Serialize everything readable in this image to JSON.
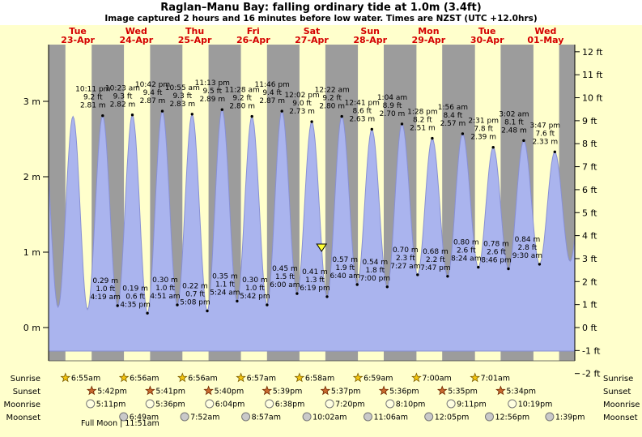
{
  "colors": {
    "page_bg": "#ffffcc",
    "header_bg": "#ffffff",
    "night_band": "#9c9c9c",
    "day_band": "#ffffcc",
    "water": "#aab4ee",
    "water_edge": "#8890d4",
    "day_label": "#d40000",
    "marker": "#ffff33",
    "sunrise_star": "#f2c40f",
    "sunset_star": "#c96a2f",
    "moonrise_fill": "#ffffe0",
    "moonset_fill": "#c9c9c9"
  },
  "chart_data": {
    "type": "area",
    "title": "Raglan–Manu Bay: falling  ordinary tide at 1.0m (3.4ft)",
    "subtitle": "Image captured 2 hours and 16 minutes before low water. Times are NZST (UTC +12.0hrs)",
    "x_axis_days": [
      {
        "weekday": "Tue",
        "date": "23-Apr"
      },
      {
        "weekday": "Wed",
        "date": "24-Apr"
      },
      {
        "weekday": "Thu",
        "date": "25-Apr"
      },
      {
        "weekday": "Fri",
        "date": "26-Apr"
      },
      {
        "weekday": "Sat",
        "date": "27-Apr"
      },
      {
        "weekday": "Sun",
        "date": "28-Apr"
      },
      {
        "weekday": "Mon",
        "date": "29-Apr"
      },
      {
        "weekday": "Tue",
        "date": "30-Apr"
      },
      {
        "weekday": "Wed",
        "date": "01-May"
      }
    ],
    "y_axis": {
      "left_unit": "m",
      "right_unit": "ft",
      "left_ticks": [
        "3 m",
        "2 m",
        "1 m",
        "0 m"
      ],
      "right_ticks": [
        "12 ft",
        "11 ft",
        "10 ft",
        "9 ft",
        "8 ft",
        "7 ft",
        "6 ft",
        "5 ft",
        "4 ft",
        "3 ft",
        "2 ft",
        "1 ft",
        "0 ft",
        "-1 ft",
        "-2 ft"
      ],
      "y_range_m": [
        -0.35,
        3.75
      ]
    },
    "tide_events": [
      {
        "type": "high",
        "time": "10:11 pm",
        "height_ft": "9.2 ft",
        "height_m": "2.81 m",
        "t": 22.183
      },
      {
        "type": "low",
        "time": "4:19 am",
        "height_ft": "1.0 ft",
        "height_m": "0.29 m",
        "t": 28.317
      },
      {
        "type": "high",
        "time": "10:23 am",
        "height_ft": "9.3 ft",
        "height_m": "2.82 m",
        "t": 34.383
      },
      {
        "type": "low",
        "time": "4:35 pm",
        "height_ft": "0.6 ft",
        "height_m": "0.19 m",
        "t": 40.583
      },
      {
        "type": "high",
        "time": "10:42 pm",
        "height_ft": "9.4 ft",
        "height_m": "2.87 m",
        "t": 46.7
      },
      {
        "type": "low",
        "time": "4:51 am",
        "height_ft": "1.0 ft",
        "height_m": "0.30 m",
        "t": 52.85
      },
      {
        "type": "high",
        "time": "10:55 am",
        "height_ft": "9.3 ft",
        "height_m": "2.83 m",
        "t": 58.917
      },
      {
        "type": "low",
        "time": "5:08 pm",
        "height_ft": "0.7 ft",
        "height_m": "0.22 m",
        "t": 65.133
      },
      {
        "type": "high",
        "time": "11:13 pm",
        "height_ft": "9.5 ft",
        "height_m": "2.89 m",
        "t": 71.217
      },
      {
        "type": "low",
        "time": "5:24 am",
        "height_ft": "1.1 ft",
        "height_m": "0.35 m",
        "t": 77.4
      },
      {
        "type": "high",
        "time": "11:28 am",
        "height_ft": "9.2 ft",
        "height_m": "2.80 m",
        "t": 83.467
      },
      {
        "type": "low",
        "time": "5:42 pm",
        "height_ft": "1.0 ft",
        "height_m": "0.30 m",
        "t": 89.7
      },
      {
        "type": "high",
        "time": "11:46 pm",
        "height_ft": "9.4 ft",
        "height_m": "2.87 m",
        "t": 95.767
      },
      {
        "type": "low",
        "time": "6:00 am",
        "height_ft": "1.5 ft",
        "height_m": "0.45 m",
        "t": 102.0
      },
      {
        "type": "high",
        "time": "12:02 pm",
        "height_ft": "9.0 ft",
        "height_m": "2.73 m",
        "t": 108.033
      },
      {
        "type": "low",
        "time": "6:19 pm",
        "height_ft": "1.3 ft",
        "height_m": "0.41 m",
        "t": 114.317
      },
      {
        "type": "high",
        "time": "12:22 am",
        "height_ft": "9.2 ft",
        "height_m": "2.80 m",
        "t": 120.367
      },
      {
        "type": "low",
        "time": "6:40 am",
        "height_ft": "1.9 ft",
        "height_m": "0.57 m",
        "t": 126.667
      },
      {
        "type": "high",
        "time": "12:41 pm",
        "height_ft": "8.6 ft",
        "height_m": "2.63 m",
        "t": 132.683
      },
      {
        "type": "low",
        "time": "7:00 pm",
        "height_ft": "1.8 ft",
        "height_m": "0.54 m",
        "t": 139.0
      },
      {
        "type": "high",
        "time": "1:04 am",
        "height_ft": "8.9 ft",
        "height_m": "2.70 m",
        "t": 145.067
      },
      {
        "type": "low",
        "time": "7:27 am",
        "height_ft": "2.3 ft",
        "height_m": "0.70 m",
        "t": 151.45
      },
      {
        "type": "high",
        "time": "1:28 pm",
        "height_ft": "8.2 ft",
        "height_m": "2.51 m",
        "t": 157.467
      },
      {
        "type": "low",
        "time": "7:47 pm",
        "height_ft": "2.2 ft",
        "height_m": "0.68 m",
        "t": 163.783
      },
      {
        "type": "high",
        "time": "1:56 am",
        "height_ft": "8.4 ft",
        "height_m": "2.57 m",
        "t": 169.933
      },
      {
        "type": "low",
        "time": "8:24 am",
        "height_ft": "2.6 ft",
        "height_m": "0.80 m",
        "t": 176.4
      },
      {
        "type": "high",
        "time": "2:31 pm",
        "height_ft": "7.8 ft",
        "height_m": "2.39 m",
        "t": 182.517
      },
      {
        "type": "low",
        "time": "8:46 pm",
        "height_ft": "2.6 ft",
        "height_m": "0.78 m",
        "t": 188.767
      },
      {
        "type": "high",
        "time": "3:02 am",
        "height_ft": "8.1 ft",
        "height_m": "2.48 m",
        "t": 195.033
      },
      {
        "type": "low",
        "time": "9:30 am",
        "height_ft": "2.8 ft",
        "height_m": "0.84 m",
        "t": 201.5
      },
      {
        "type": "high",
        "time": "3:47 pm",
        "height_ft": "7.6 ft",
        "height_m": "2.33 m",
        "t": 207.783
      }
    ],
    "curve_padding_events": [
      {
        "t": -2.3,
        "height_m": 2.79
      },
      {
        "t": 3.9,
        "height_m": 0.27
      },
      {
        "t": 10.05,
        "height_m": 2.8
      },
      {
        "t": 16.0,
        "height_m": 0.24
      },
      {
        "t": 214.1,
        "height_m": 0.88
      },
      {
        "t": 220.3,
        "height_m": 2.4
      }
    ],
    "current_marker": {
      "t": 112.05,
      "height_m": 1.0,
      "description": "falling tide at 1.0m (3.4ft), 2 hours and 16 minutes before low water"
    },
    "sun_moon": {
      "rows": [
        {
          "id": "sunrise",
          "label": "Sunrise",
          "icon": "sunrise-star-icon",
          "start_day": 0,
          "times": [
            "6:55am",
            "6:56am",
            "6:56am",
            "6:57am",
            "6:58am",
            "6:59am",
            "7:00am",
            "7:01am"
          ]
        },
        {
          "id": "sunset",
          "label": "Sunset",
          "icon": "sunset-star-icon",
          "start_day": 0,
          "times": [
            "5:42pm",
            "5:41pm",
            "5:40pm",
            "5:39pm",
            "5:37pm",
            "5:36pm",
            "5:35pm",
            "5:34pm"
          ]
        },
        {
          "id": "moonrise",
          "label": "Moonrise",
          "icon": "moonrise-icon",
          "start_day": 0,
          "times": [
            "5:11pm",
            "5:36pm",
            "6:04pm",
            "6:38pm",
            "7:20pm",
            "8:10pm",
            "9:11pm",
            "10:19pm"
          ]
        },
        {
          "id": "moonset",
          "label": "Moonset",
          "icon": "moonset-icon",
          "start_day": 1,
          "times": [
            "6:49am",
            "7:52am",
            "8:57am",
            "10:02am",
            "11:06am",
            "12:05pm",
            "12:56pm",
            "1:39pm"
          ]
        }
      ],
      "footnote": "Full Moon | 11:51am"
    }
  }
}
